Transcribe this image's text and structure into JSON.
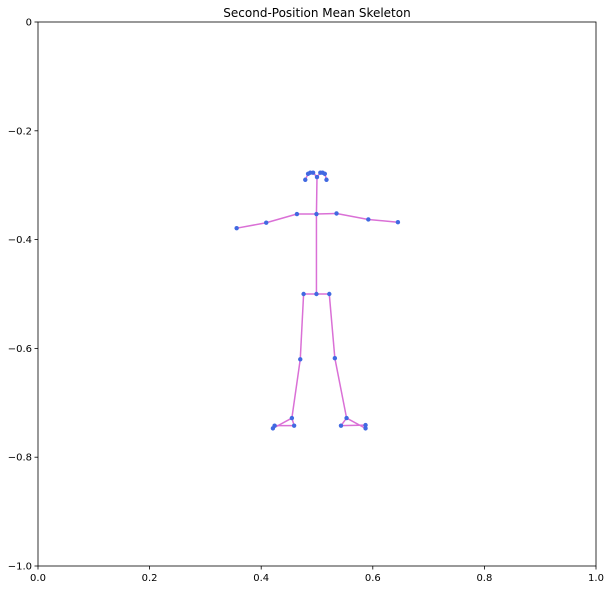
{
  "chart_data": {
    "type": "scatter",
    "title": "Second-Position Mean Skeleton",
    "xlabel": "",
    "ylabel": "",
    "xlim": [
      0,
      1
    ],
    "ylim": [
      -1,
      0
    ],
    "x_ticks": [
      0.0,
      0.2,
      0.4,
      0.6,
      0.8,
      1.0
    ],
    "x_tick_labels": [
      "0.0",
      "0.2",
      "0.4",
      "0.6",
      "0.8",
      "1.0"
    ],
    "y_ticks": [
      0.0,
      -0.2,
      -0.4,
      -0.6,
      -0.8,
      -1.0
    ],
    "y_tick_labels": [
      "0",
      "−0.2",
      "−0.4",
      "−0.6",
      "−0.8",
      "−1.0"
    ],
    "grid": false,
    "colors": {
      "bones": "#da70d6",
      "joints": "#4169e1"
    },
    "joints": [
      {
        "name": "nose",
        "x": 0.5,
        "y": -0.285
      },
      {
        "name": "left_eye_inner",
        "x": 0.493,
        "y": -0.277
      },
      {
        "name": "left_eye",
        "x": 0.488,
        "y": -0.277
      },
      {
        "name": "left_eye_outer",
        "x": 0.484,
        "y": -0.279
      },
      {
        "name": "right_eye_inner",
        "x": 0.506,
        "y": -0.277
      },
      {
        "name": "right_eye",
        "x": 0.51,
        "y": -0.277
      },
      {
        "name": "right_eye_outer",
        "x": 0.514,
        "y": -0.279
      },
      {
        "name": "left_ear",
        "x": 0.479,
        "y": -0.29
      },
      {
        "name": "right_ear",
        "x": 0.517,
        "y": -0.29
      },
      {
        "name": "neck",
        "x": 0.499,
        "y": -0.353
      },
      {
        "name": "left_shoulder",
        "x": 0.464,
        "y": -0.353
      },
      {
        "name": "right_shoulder",
        "x": 0.535,
        "y": -0.352
      },
      {
        "name": "left_elbow",
        "x": 0.409,
        "y": -0.369
      },
      {
        "name": "right_elbow",
        "x": 0.592,
        "y": -0.363
      },
      {
        "name": "left_wrist",
        "x": 0.356,
        "y": -0.379
      },
      {
        "name": "right_wrist",
        "x": 0.645,
        "y": -0.368
      },
      {
        "name": "mid_hip",
        "x": 0.499,
        "y": -0.5
      },
      {
        "name": "left_hip",
        "x": 0.476,
        "y": -0.5
      },
      {
        "name": "right_hip",
        "x": 0.522,
        "y": -0.5
      },
      {
        "name": "left_knee",
        "x": 0.47,
        "y": -0.62
      },
      {
        "name": "right_knee",
        "x": 0.532,
        "y": -0.618
      },
      {
        "name": "left_ankle",
        "x": 0.455,
        "y": -0.728
      },
      {
        "name": "right_ankle",
        "x": 0.553,
        "y": -0.728
      },
      {
        "name": "left_heel",
        "x": 0.459,
        "y": -0.742
      },
      {
        "name": "right_heel",
        "x": 0.543,
        "y": -0.742
      },
      {
        "name": "left_foot_index",
        "x": 0.421,
        "y": -0.747
      },
      {
        "name": "left_foot_index_b",
        "x": 0.424,
        "y": -0.742
      },
      {
        "name": "right_foot_index",
        "x": 0.587,
        "y": -0.747
      },
      {
        "name": "right_foot_index_b",
        "x": 0.587,
        "y": -0.741
      }
    ],
    "bones": [
      [
        "nose",
        "left_eye_inner"
      ],
      [
        "left_eye_inner",
        "left_eye"
      ],
      [
        "left_eye",
        "left_eye_outer"
      ],
      [
        "left_eye_outer",
        "left_ear"
      ],
      [
        "nose",
        "right_eye_inner"
      ],
      [
        "right_eye_inner",
        "right_eye"
      ],
      [
        "right_eye",
        "right_eye_outer"
      ],
      [
        "right_eye_outer",
        "right_ear"
      ],
      [
        "nose",
        "neck"
      ],
      [
        "neck",
        "left_shoulder"
      ],
      [
        "left_shoulder",
        "left_elbow"
      ],
      [
        "left_elbow",
        "left_wrist"
      ],
      [
        "neck",
        "right_shoulder"
      ],
      [
        "right_shoulder",
        "right_elbow"
      ],
      [
        "right_elbow",
        "right_wrist"
      ],
      [
        "neck",
        "mid_hip"
      ],
      [
        "mid_hip",
        "left_hip"
      ],
      [
        "mid_hip",
        "right_hip"
      ],
      [
        "left_hip",
        "left_knee"
      ],
      [
        "left_knee",
        "left_ankle"
      ],
      [
        "right_hip",
        "right_knee"
      ],
      [
        "right_knee",
        "right_ankle"
      ],
      [
        "left_ankle",
        "left_heel"
      ],
      [
        "left_ankle",
        "left_foot_index"
      ],
      [
        "left_heel",
        "left_foot_index_b"
      ],
      [
        "right_ankle",
        "right_heel"
      ],
      [
        "right_ankle",
        "right_foot_index"
      ],
      [
        "right_heel",
        "right_foot_index_b"
      ]
    ]
  }
}
